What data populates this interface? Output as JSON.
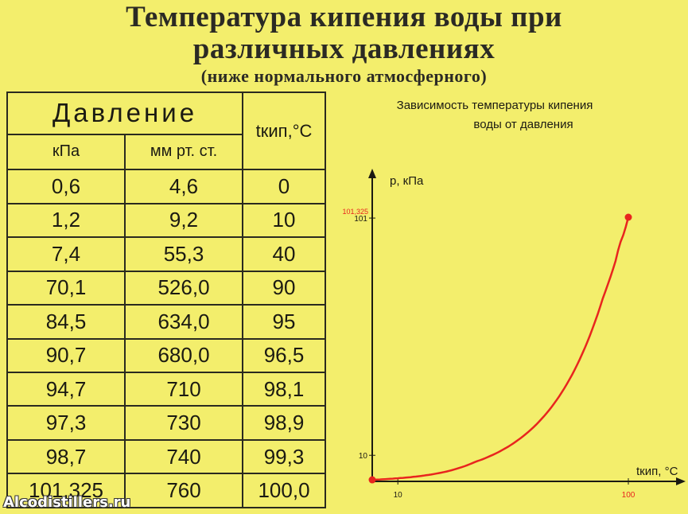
{
  "title": {
    "line1": "Температура кипения воды при",
    "line2": "различных давлениях",
    "line3": "(ниже нормального атмосферного)"
  },
  "table": {
    "pressure_header": "Давление",
    "temp_header": "tкип,°C",
    "col_kpa": "кПа",
    "col_mmhg": "мм рт. ст.",
    "rows": [
      [
        "0,6",
        "4,6",
        "0"
      ],
      [
        "1,2",
        "9,2",
        "10"
      ],
      [
        "7,4",
        "55,3",
        "40"
      ],
      [
        "70,1",
        "526,0",
        "90"
      ],
      [
        "84,5",
        "634,0",
        "95"
      ],
      [
        "90,7",
        "680,0",
        "96,5"
      ],
      [
        "94,7",
        "710",
        "98,1"
      ],
      [
        "97,3",
        "730",
        "98,9"
      ],
      [
        "98,7",
        "740",
        "99,3"
      ],
      [
        "101,325",
        "760",
        "100,0"
      ]
    ]
  },
  "chart_data": {
    "type": "line",
    "title": "Зависимость температуры кипения воды от давления",
    "xlabel": "tкип, °C",
    "ylabel": "p, кПа",
    "x_ticks": [
      "10",
      "100"
    ],
    "y_ticks": [
      "10",
      "101"
    ],
    "y_marker_label": "101,325",
    "xlim": [
      0,
      100
    ],
    "ylim": [
      0,
      101.325
    ],
    "series": [
      {
        "points": [
          [
            0,
            0.6
          ],
          [
            10,
            1.2
          ],
          [
            40,
            7.4
          ],
          [
            90,
            70.1
          ],
          [
            95,
            84.5
          ],
          [
            96.5,
            90.7
          ],
          [
            98.1,
            94.7
          ],
          [
            98.9,
            97.3
          ],
          [
            99.3,
            98.7
          ],
          [
            100,
            101.325
          ]
        ],
        "color": "#e8251e"
      }
    ]
  },
  "watermark": "Alcodistillers.ru",
  "colors": {
    "background": "#f3ee6c",
    "curve": "#e8251e"
  }
}
